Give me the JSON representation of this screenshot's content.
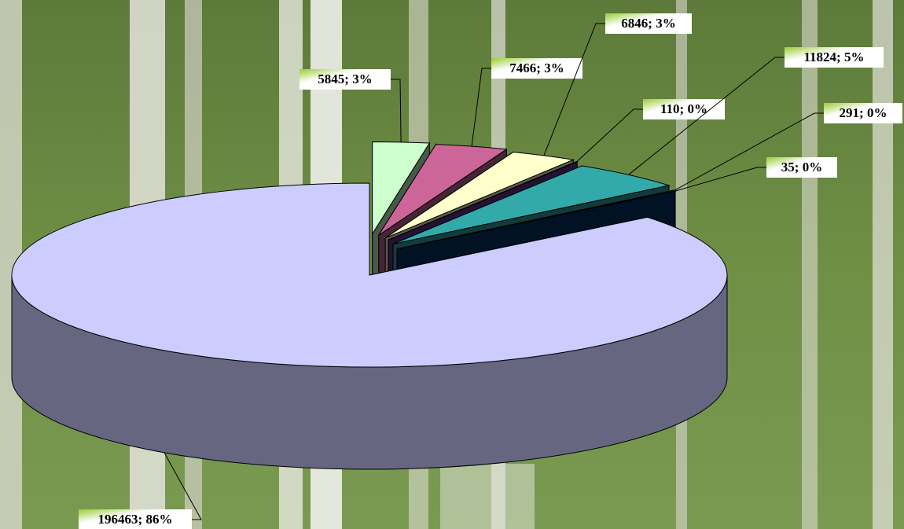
{
  "chart_data": {
    "type": "pie3d",
    "values": [
      5845,
      7466,
      6846,
      110,
      11824,
      291,
      35,
      196463
    ],
    "value_labels": [
      "5845; 3%",
      "7466; 3%",
      "6846; 3%",
      "110; 0%",
      "11824; 5%",
      "291; 0%",
      "35; 0%",
      "196463; 86%"
    ],
    "colors": [
      "#ccffcc",
      "#cc6699",
      "#ffffcc",
      "#663399",
      "#33aaaa",
      "#3366cc",
      "#003366",
      "#ccccff"
    ]
  }
}
